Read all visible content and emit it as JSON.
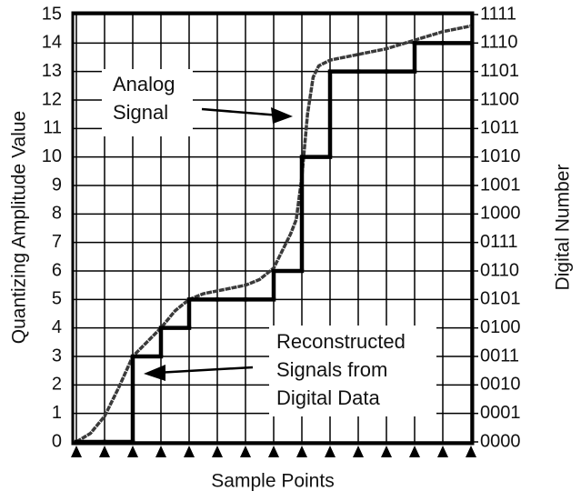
{
  "chart_data": {
    "type": "line",
    "x_label": "Sample Points",
    "y_label": "Quantizing Amplitude Value",
    "y2_label": "Digital Number",
    "xlim": [
      0,
      14
    ],
    "xticks": [
      0,
      1,
      2,
      3,
      4,
      5,
      6,
      7,
      8,
      9,
      10,
      11,
      12,
      13,
      14
    ],
    "ylim": [
      0,
      15
    ],
    "yticks": [
      0,
      1,
      2,
      3,
      4,
      5,
      6,
      7,
      8,
      9,
      10,
      11,
      12,
      13,
      14,
      15
    ],
    "y2lim": [
      0,
      15
    ],
    "y2ticks": [
      {
        "value": 0,
        "label": "0000"
      },
      {
        "value": 1,
        "label": "0001"
      },
      {
        "value": 2,
        "label": "0010"
      },
      {
        "value": 3,
        "label": "0011"
      },
      {
        "value": 4,
        "label": "0100"
      },
      {
        "value": 5,
        "label": "0101"
      },
      {
        "value": 6,
        "label": "0110"
      },
      {
        "value": 7,
        "label": "0111"
      },
      {
        "value": 8,
        "label": "1000"
      },
      {
        "value": 9,
        "label": "1001"
      },
      {
        "value": 10,
        "label": "1010"
      },
      {
        "value": 11,
        "label": "1011"
      },
      {
        "value": 12,
        "label": "1100"
      },
      {
        "value": 13,
        "label": "1101"
      },
      {
        "value": 14,
        "label": "1110"
      },
      {
        "value": 15,
        "label": "1111"
      }
    ],
    "grid": true,
    "series": [
      {
        "color": "#3a3a3a",
        "x": [
          0,
          0.5,
          1,
          1.5,
          2,
          2.5,
          3,
          3.5,
          4,
          4.5,
          5,
          5.5,
          6,
          6.5,
          7,
          7.3,
          7.6,
          7.8,
          8,
          8.2,
          8.4,
          8.6,
          9,
          9.5,
          10,
          11,
          12,
          13,
          14
        ],
        "values": [
          0,
          0.3,
          0.9,
          1.9,
          3.0,
          3.5,
          4.0,
          4.6,
          5.0,
          5.2,
          5.3,
          5.4,
          5.5,
          5.7,
          6.1,
          6.7,
          7.3,
          7.8,
          9.3,
          11.5,
          12.8,
          13.2,
          13.4,
          13.5,
          13.6,
          13.8,
          14.1,
          14.4,
          14.6
        ]
      },
      {
        "color": "#000000",
        "step": "post",
        "x": [
          0,
          1,
          2,
          3,
          4,
          5,
          6,
          7,
          8,
          9,
          10,
          11,
          12,
          13
        ],
        "values": [
          0,
          0,
          3,
          4,
          5,
          5,
          5,
          6,
          10,
          13,
          13,
          13,
          14,
          14
        ]
      }
    ],
    "annotations": [
      {
        "lines": [
          "Analog",
          "Signal"
        ]
      },
      {
        "lines": [
          "Reconstructed",
          "Signals from",
          "Digital Data"
        ]
      }
    ]
  }
}
